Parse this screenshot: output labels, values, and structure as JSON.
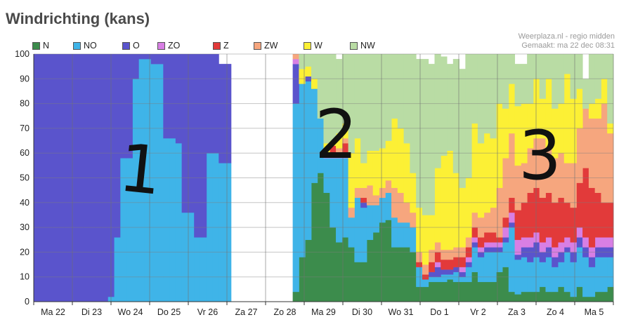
{
  "title": "Windrichting (kans)",
  "credit": [
    "Weerplaza.nl - regio midden",
    "Gemaakt: ma 22 dec 08:31"
  ],
  "annotations": [
    "1",
    "2",
    "3"
  ],
  "chart_data": {
    "type": "area",
    "stacked": true,
    "title": "Windrichting (kans)",
    "xlabel": "",
    "ylabel": "",
    "ylim": [
      0,
      100
    ],
    "yticks": [
      0,
      10,
      20,
      30,
      40,
      50,
      60,
      70,
      80,
      90,
      100
    ],
    "grid": true,
    "legend_position": "top-left",
    "day_labels": [
      "Ma 22",
      "Di 23",
      "Wo 24",
      "Do 25",
      "Vr 26",
      "Za 27",
      "Zo 28",
      "Ma 29",
      "Di 30",
      "Wo 31",
      "Do 1",
      "Vr 2",
      "Za 3",
      "Zo 4",
      "Ma 5"
    ],
    "series": [
      {
        "name": "N",
        "color": "#3c8c4c",
        "values": [
          0,
          0,
          0,
          0,
          0,
          0,
          0,
          0,
          0,
          0,
          0,
          0,
          0,
          0,
          0,
          0,
          0,
          0,
          0,
          0,
          0,
          0,
          0,
          0,
          0,
          0,
          0,
          0,
          0,
          0,
          0,
          0,
          0,
          0,
          0,
          0,
          0,
          0,
          0,
          0,
          0,
          0,
          4,
          18,
          25,
          48,
          52,
          44,
          30,
          24,
          26,
          22,
          16,
          16,
          25,
          28,
          32,
          33,
          22,
          22,
          22,
          20,
          6,
          6,
          8,
          8,
          8,
          9,
          8,
          8,
          8,
          12,
          8,
          8,
          8,
          12,
          14,
          4,
          3,
          4,
          4,
          4,
          6,
          4,
          4,
          6,
          4,
          2,
          6,
          2,
          2,
          4,
          4,
          6
        ]
      },
      {
        "name": "NO",
        "color": "#3fb4e8",
        "values": [
          0,
          0,
          0,
          0,
          0,
          0,
          0,
          0,
          0,
          0,
          0,
          0,
          2,
          26,
          58,
          58,
          90,
          98,
          98,
          96,
          96,
          66,
          66,
          64,
          36,
          36,
          26,
          26,
          60,
          60,
          56,
          56,
          0,
          0,
          0,
          0,
          0,
          0,
          0,
          0,
          0,
          0,
          76,
          70,
          64,
          38,
          22,
          14,
          28,
          34,
          32,
          12,
          26,
          22,
          14,
          11,
          10,
          11,
          12,
          10,
          10,
          10,
          8,
          3,
          2,
          2,
          3,
          2,
          4,
          2,
          6,
          10,
          10,
          12,
          12,
          8,
          10,
          26,
          14,
          14,
          12,
          14,
          10,
          14,
          10,
          10,
          16,
          14,
          16,
          16,
          12,
          14,
          14,
          12
        ]
      },
      {
        "name": "O",
        "color": "#5a54cc",
        "values": [
          100,
          100,
          100,
          100,
          100,
          100,
          100,
          100,
          100,
          100,
          100,
          100,
          98,
          74,
          42,
          42,
          10,
          2,
          2,
          4,
          4,
          34,
          34,
          36,
          64,
          64,
          74,
          74,
          40,
          40,
          40,
          40,
          0,
          0,
          0,
          0,
          0,
          0,
          0,
          0,
          0,
          0,
          16,
          0,
          2,
          0,
          0,
          0,
          0,
          0,
          0,
          0,
          0,
          2,
          0,
          0,
          0,
          0,
          0,
          0,
          0,
          0,
          0,
          0,
          2,
          4,
          2,
          2,
          2,
          2,
          2,
          2,
          2,
          2,
          2,
          2,
          2,
          2,
          2,
          4,
          6,
          6,
          4,
          4,
          4,
          4,
          2,
          4,
          4,
          4,
          4,
          4,
          4,
          4
        ]
      },
      {
        "name": "ZO",
        "color": "#d87fe4",
        "values": [
          0,
          0,
          0,
          0,
          0,
          0,
          0,
          0,
          0,
          0,
          0,
          0,
          0,
          0,
          0,
          0,
          0,
          0,
          0,
          0,
          0,
          0,
          0,
          0,
          0,
          0,
          0,
          0,
          0,
          0,
          0,
          0,
          0,
          0,
          0,
          0,
          0,
          0,
          0,
          0,
          0,
          0,
          2,
          0,
          0,
          0,
          0,
          2,
          2,
          2,
          2,
          0,
          0,
          0,
          0,
          0,
          0,
          0,
          0,
          0,
          0,
          0,
          0,
          0,
          0,
          2,
          0,
          0,
          0,
          2,
          2,
          2,
          2,
          2,
          2,
          2,
          4,
          4,
          6,
          4,
          4,
          4,
          4,
          4,
          4,
          4,
          4,
          4,
          4,
          4,
          4,
          4,
          4,
          4
        ]
      },
      {
        "name": "Z",
        "color": "#e23a3a",
        "values": [
          0,
          0,
          0,
          0,
          0,
          0,
          0,
          0,
          0,
          0,
          0,
          0,
          0,
          0,
          0,
          0,
          0,
          0,
          0,
          0,
          0,
          0,
          0,
          0,
          0,
          0,
          0,
          0,
          0,
          0,
          0,
          0,
          0,
          0,
          0,
          0,
          0,
          0,
          0,
          0,
          0,
          0,
          0,
          0,
          0,
          0,
          0,
          0,
          3,
          0,
          4,
          0,
          0,
          2,
          0,
          0,
          0,
          0,
          0,
          0,
          0,
          0,
          2,
          2,
          4,
          4,
          4,
          4,
          4,
          4,
          4,
          4,
          4,
          4,
          4,
          2,
          4,
          6,
          12,
          14,
          18,
          18,
          18,
          18,
          18,
          18,
          14,
          14,
          18,
          28,
          24,
          18,
          14,
          14
        ]
      },
      {
        "name": "ZW",
        "color": "#f6a67e",
        "values": [
          0,
          0,
          0,
          0,
          0,
          0,
          0,
          0,
          0,
          0,
          0,
          0,
          0,
          0,
          0,
          0,
          0,
          0,
          0,
          0,
          0,
          0,
          0,
          0,
          0,
          0,
          0,
          0,
          0,
          0,
          0,
          0,
          0,
          0,
          0,
          0,
          0,
          0,
          0,
          0,
          0,
          0,
          2,
          0,
          0,
          0,
          0,
          0,
          0,
          2,
          2,
          4,
          4,
          4,
          8,
          4,
          4,
          5,
          12,
          12,
          8,
          6,
          4,
          4,
          5,
          4,
          4,
          4,
          4,
          4,
          4,
          6,
          8,
          8,
          10,
          20,
          24,
          26,
          18,
          16,
          18,
          20,
          24,
          18,
          18,
          18,
          16,
          18,
          22,
          24,
          28,
          30,
          40,
          28
        ]
      },
      {
        "name": "W",
        "color": "#fcf035",
        "values": [
          0,
          0,
          0,
          0,
          0,
          0,
          0,
          0,
          0,
          0,
          0,
          0,
          0,
          0,
          0,
          0,
          0,
          0,
          0,
          0,
          0,
          0,
          0,
          0,
          0,
          0,
          0,
          0,
          0,
          0,
          0,
          0,
          0,
          0,
          0,
          0,
          0,
          0,
          0,
          0,
          0,
          0,
          0,
          6,
          4,
          4,
          0,
          4,
          2,
          6,
          6,
          22,
          20,
          10,
          14,
          18,
          16,
          16,
          28,
          26,
          24,
          16,
          18,
          20,
          14,
          30,
          38,
          40,
          30,
          24,
          24,
          36,
          30,
          32,
          28,
          34,
          20,
          20,
          24,
          24,
          18,
          24,
          16,
          28,
          20,
          20,
          36,
          26,
          16,
          0,
          6,
          8,
          10,
          4
        ]
      },
      {
        "name": "NW",
        "color": "#b9dca4",
        "values": [
          0,
          0,
          0,
          0,
          0,
          0,
          0,
          0,
          0,
          0,
          0,
          0,
          0,
          0,
          0,
          0,
          0,
          0,
          0,
          0,
          0,
          0,
          0,
          0,
          0,
          0,
          0,
          0,
          0,
          0,
          0,
          0,
          0,
          0,
          0,
          0,
          0,
          0,
          0,
          0,
          0,
          0,
          0,
          6,
          5,
          10,
          26,
          36,
          35,
          30,
          28,
          40,
          36,
          44,
          39,
          39,
          38,
          35,
          26,
          30,
          36,
          48,
          60,
          63,
          61,
          46,
          40,
          35,
          46,
          48,
          50,
          28,
          36,
          32,
          34,
          20,
          22,
          12,
          17,
          16,
          20,
          10,
          18,
          10,
          22,
          20,
          8,
          18,
          14,
          12,
          20,
          18,
          10,
          28
        ]
      }
    ]
  }
}
